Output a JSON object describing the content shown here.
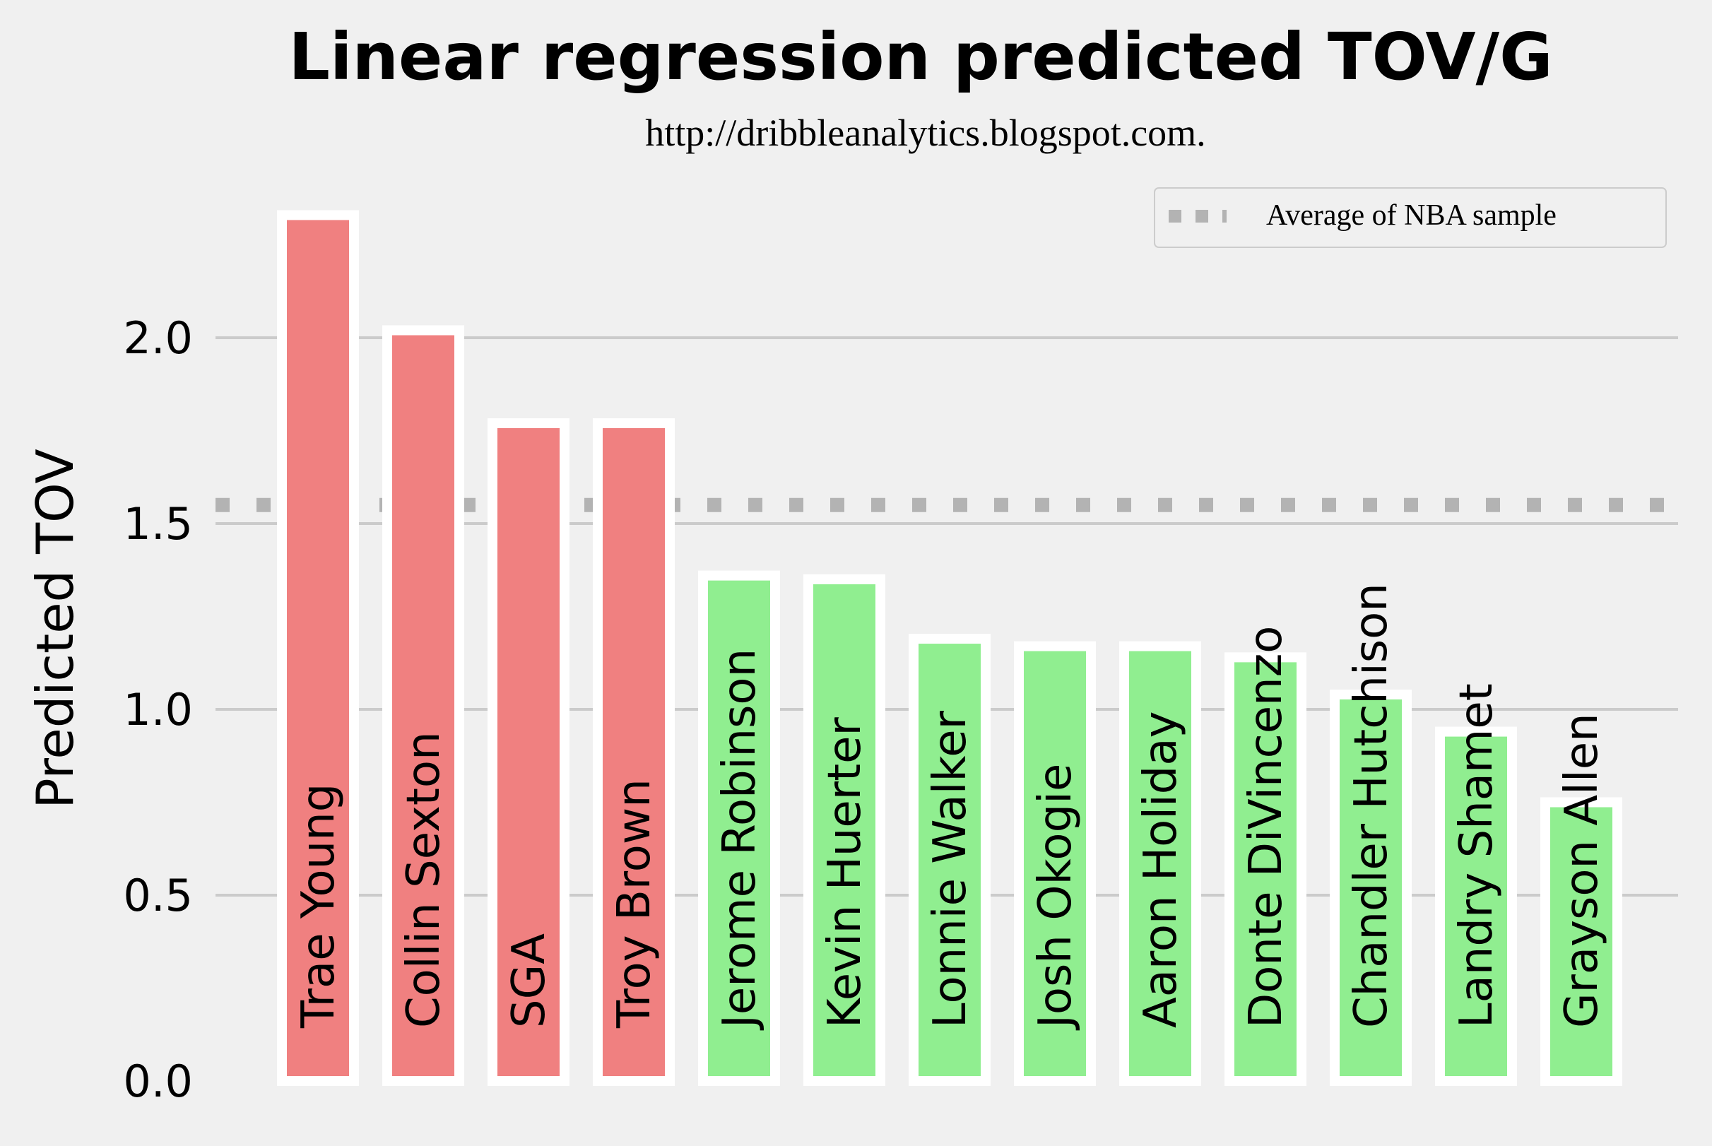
{
  "chart_data": {
    "type": "bar",
    "title": "Linear regression predicted TOV/G",
    "subtitle": "http://dribbleanalytics.blogspot.com.",
    "ylabel": "Predicted TOV",
    "xlabel": "",
    "ylim": [
      0,
      2.35
    ],
    "yticks": [
      0.0,
      0.5,
      1.0,
      1.5,
      2.0
    ],
    "ytick_labels": [
      "0.0",
      "0.5",
      "1.0",
      "1.5",
      "2.0"
    ],
    "grid": "horizontal",
    "categories": [
      "Trae Young",
      "Collin Sexton",
      "SGA",
      "Troy Brown",
      "Jerome Robinson",
      "Kevin Huerter",
      "Lonnie Walker",
      "Josh Okogie",
      "Aaron Holiday",
      "Donte DiVincenzo",
      "Chandler Hutchison",
      "Landry Shamet",
      "Grayson Allen"
    ],
    "values": [
      2.33,
      2.02,
      1.77,
      1.77,
      1.36,
      1.35,
      1.19,
      1.17,
      1.17,
      1.14,
      1.04,
      0.94,
      0.75
    ],
    "bar_colors": [
      "#f08080",
      "#f08080",
      "#f08080",
      "#f08080",
      "#90ee90",
      "#90ee90",
      "#90ee90",
      "#90ee90",
      "#90ee90",
      "#90ee90",
      "#90ee90",
      "#90ee90",
      "#90ee90"
    ],
    "reference_line": {
      "value": 1.55,
      "label": "Average of NBA sample",
      "style": "dotted",
      "color": "#b3b3b3"
    },
    "legend": {
      "placement": "top-right",
      "entries": [
        "Average of NBA sample"
      ]
    },
    "colors": {
      "background": "#f0f0f0",
      "grid": "#cbcbcb",
      "bar_edge": "#ffffff"
    }
  }
}
